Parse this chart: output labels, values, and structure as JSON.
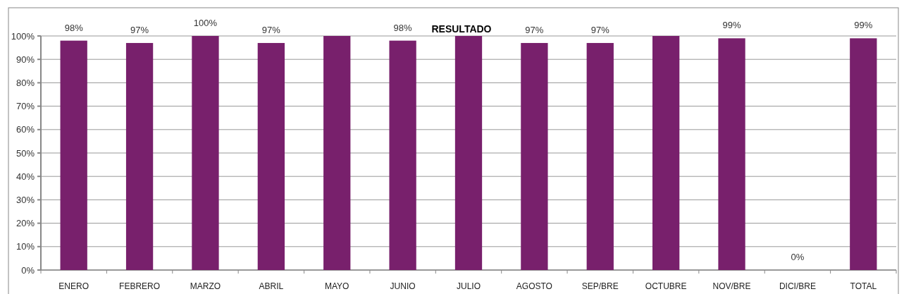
{
  "chart_data": {
    "type": "bar",
    "title": "RESULTADO",
    "categories": [
      "ENERO",
      "FEBRERO",
      "MARZO",
      "ABRIL",
      "MAYO",
      "JUNIO",
      "JULIO",
      "AGOSTO",
      "SEP/BRE",
      "OCTUBRE",
      "NOV/BRE",
      "DICI/BRE",
      "TOTAL"
    ],
    "values": [
      98,
      97,
      100,
      97,
      100,
      98,
      100,
      97,
      97,
      100,
      99,
      0,
      99
    ],
    "value_labels": [
      "98%",
      "97%",
      "100%",
      "97%",
      null,
      "98%",
      null,
      "97%",
      "97%",
      null,
      "99%",
      "0%",
      "99%"
    ],
    "color": "#78206c",
    "ylim": [
      0,
      100
    ],
    "yticks": [
      {
        "value": 0,
        "label": "0%"
      },
      {
        "value": 10,
        "label": "10%"
      },
      {
        "value": 20,
        "label": "20%"
      },
      {
        "value": 30,
        "label": "30%"
      },
      {
        "value": 40,
        "label": "40%"
      },
      {
        "value": 50,
        "label": "50%"
      },
      {
        "value": 60,
        "label": "60%"
      },
      {
        "value": 70,
        "label": "70%"
      },
      {
        "value": 80,
        "label": "80%"
      },
      {
        "value": 90,
        "label": "90%"
      },
      {
        "value": 100,
        "label": "100%"
      }
    ],
    "grid": "y"
  }
}
